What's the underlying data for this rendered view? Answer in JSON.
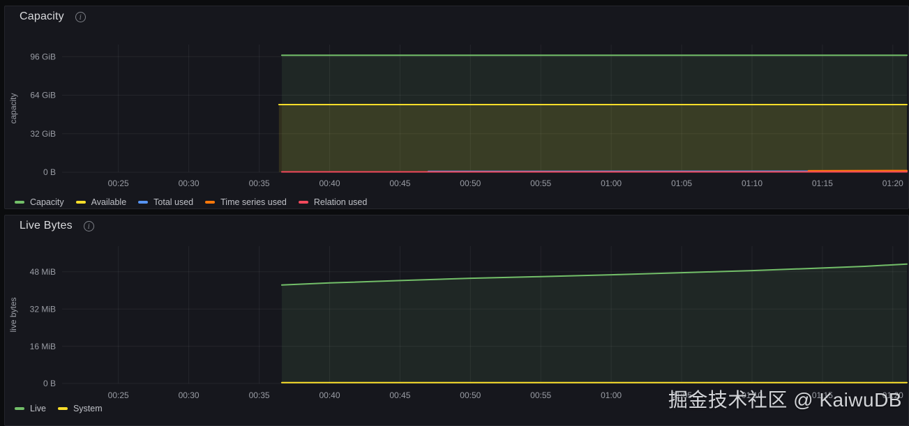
{
  "watermark": "掘金技术社区 @ KaiwuDB",
  "colors": {
    "green": "#73BF69",
    "yellow": "#FADE2A",
    "blue": "#5794F2",
    "orange": "#FF780A",
    "red": "#F2495C",
    "panel_bg": "#16171d",
    "page_bg": "#0b0c0e",
    "grid": "rgba(204,204,220,0.08)"
  },
  "chart_data": [
    {
      "type": "area",
      "title": "Capacity",
      "ylabel": "capacity",
      "xlabel": "",
      "grid": true,
      "legend_position": "bottom",
      "x_axis": {
        "unit": "time hh:mm",
        "tick_labels": [
          "00:25",
          "00:30",
          "00:35",
          "00:40",
          "00:45",
          "00:50",
          "00:55",
          "01:00",
          "01:05",
          "01:10",
          "01:15",
          "01:20"
        ],
        "tick_minutes": [
          25,
          30,
          35,
          40,
          45,
          50,
          55,
          60,
          65,
          70,
          75,
          80
        ],
        "range_minutes": [
          21,
          81
        ]
      },
      "y_axis": {
        "unit": "GiB",
        "ticks": [
          {
            "v": 0,
            "label": "0 B"
          },
          {
            "v": 32,
            "label": "32 GiB"
          },
          {
            "v": 64,
            "label": "64 GiB"
          },
          {
            "v": 96,
            "label": "96 GiB"
          }
        ],
        "range": [
          0,
          106
        ]
      },
      "series": [
        {
          "name": "Capacity",
          "color": "#73BF69",
          "fill_opacity": 0.1,
          "points": [
            [
              36.6,
              97.2
            ],
            [
              81,
              97.2
            ]
          ]
        },
        {
          "name": "Available",
          "color": "#FADE2A",
          "fill_opacity": 0.12,
          "points": [
            [
              36.4,
              56.2
            ],
            [
              81,
              56.2
            ]
          ]
        },
        {
          "name": "Total used",
          "color": "#5794F2",
          "fill_opacity": 0.08,
          "points": [
            [
              47,
              0.7
            ],
            [
              81,
              0.9
            ]
          ]
        },
        {
          "name": "Time series used",
          "color": "#FF780A",
          "fill_opacity": 0.08,
          "points": [
            [
              74,
              1.2
            ],
            [
              81,
              1.4
            ]
          ]
        },
        {
          "name": "Relation used",
          "color": "#F2495C",
          "fill_opacity": 0.08,
          "points": [
            [
              36.6,
              0.3
            ],
            [
              81,
              0.3
            ]
          ]
        }
      ]
    },
    {
      "type": "area",
      "title": "Live Bytes",
      "ylabel": "live bytes",
      "xlabel": "",
      "grid": true,
      "legend_position": "bottom",
      "x_axis": {
        "unit": "time hh:mm",
        "tick_labels": [
          "00:25",
          "00:30",
          "00:35",
          "00:40",
          "00:45",
          "00:50",
          "00:55",
          "01:00",
          "01:05",
          "01:10",
          "01:15",
          "01:20"
        ],
        "tick_minutes": [
          25,
          30,
          35,
          40,
          45,
          50,
          55,
          60,
          65,
          70,
          75,
          80
        ],
        "range_minutes": [
          21,
          81
        ]
      },
      "y_axis": {
        "unit": "MiB",
        "ticks": [
          {
            "v": 0,
            "label": "0 B"
          },
          {
            "v": 16,
            "label": "16 MiB"
          },
          {
            "v": 32,
            "label": "32 MiB"
          },
          {
            "v": 48,
            "label": "48 MiB"
          }
        ],
        "range": [
          0,
          59
        ]
      },
      "series": [
        {
          "name": "Live",
          "color": "#73BF69",
          "fill_opacity": 0.1,
          "points": [
            [
              36.6,
              42.3
            ],
            [
              40,
              43.2
            ],
            [
              45,
              44.2
            ],
            [
              50,
              45.2
            ],
            [
              55,
              45.9
            ],
            [
              60,
              46.7
            ],
            [
              65,
              47.6
            ],
            [
              70,
              48.5
            ],
            [
              75,
              49.6
            ],
            [
              78,
              50.3
            ],
            [
              81,
              51.3
            ]
          ]
        },
        {
          "name": "System",
          "color": "#FADE2A",
          "fill_opacity": 0.1,
          "points": [
            [
              36.6,
              0.4
            ],
            [
              81,
              0.4
            ]
          ]
        }
      ]
    }
  ]
}
